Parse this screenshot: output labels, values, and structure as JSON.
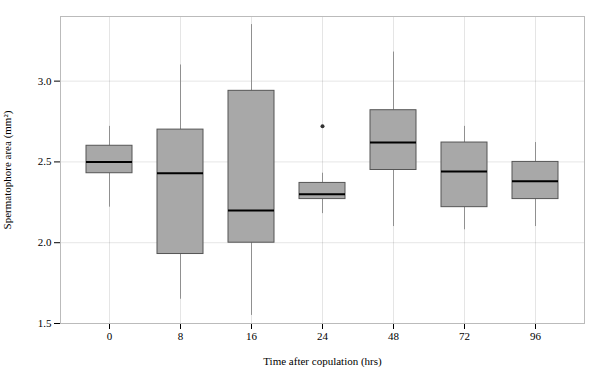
{
  "chart_data": {
    "type": "box",
    "xlabel": "Time after copulation (hrs)",
    "ylabel": "Spermatophore area (mm²)",
    "categories": [
      "0",
      "8",
      "16",
      "24",
      "48",
      "72",
      "96"
    ],
    "boxes": [
      {
        "whislo": 2.22,
        "q1": 2.43,
        "med": 2.5,
        "q3": 2.6,
        "whishi": 2.72,
        "fliers": []
      },
      {
        "whislo": 1.65,
        "q1": 1.93,
        "med": 2.43,
        "q3": 2.7,
        "whishi": 3.1,
        "fliers": []
      },
      {
        "whislo": 1.55,
        "q1": 2.0,
        "med": 2.2,
        "q3": 2.94,
        "whishi": 3.35,
        "fliers": []
      },
      {
        "whislo": 2.18,
        "q1": 2.27,
        "med": 2.3,
        "q3": 2.37,
        "whishi": 2.43,
        "fliers": [
          2.72
        ]
      },
      {
        "whislo": 2.1,
        "q1": 2.45,
        "med": 2.62,
        "q3": 2.82,
        "whishi": 3.18,
        "fliers": []
      },
      {
        "whislo": 2.08,
        "q1": 2.22,
        "med": 2.44,
        "q3": 2.62,
        "whishi": 2.72,
        "fliers": []
      },
      {
        "whislo": 2.1,
        "q1": 2.27,
        "med": 2.38,
        "q3": 2.5,
        "whishi": 2.62,
        "fliers": []
      }
    ],
    "color": "#a8a8a8",
    "ylim": [
      1.5,
      3.4
    ],
    "yticks": [
      1.5,
      {
        "value": 2,
        "label": "2.0"
      },
      2.5,
      {
        "value": 3,
        "label": "3.0"
      }
    ],
    "grid": true
  }
}
